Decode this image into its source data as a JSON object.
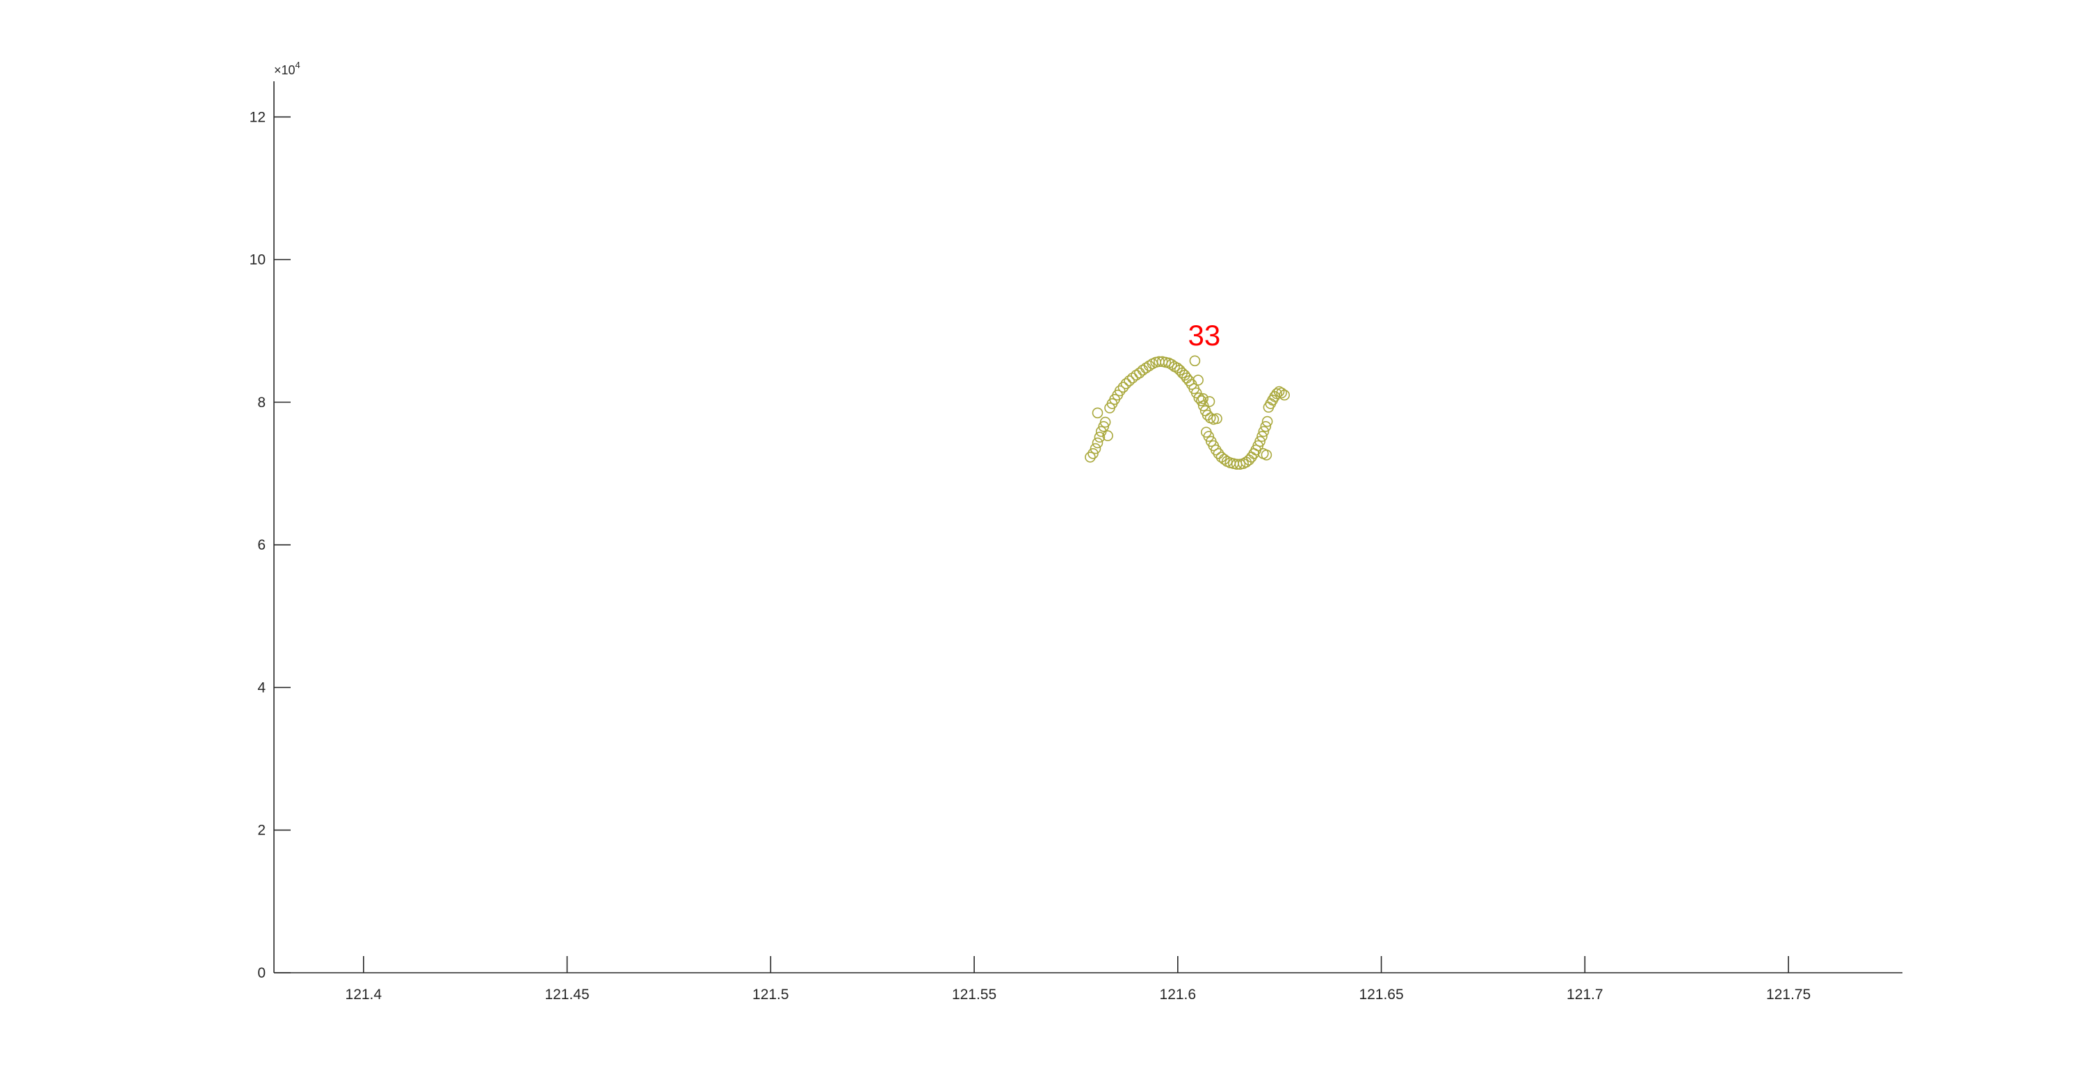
{
  "chart_data": {
    "type": "scatter",
    "title": "",
    "xlabel": "",
    "ylabel": "",
    "xlim": [
      121.378,
      121.778
    ],
    "ylim": [
      0,
      125000
    ],
    "x_ticks": [
      121.4,
      121.45,
      121.5,
      121.55,
      121.6,
      121.65,
      121.7,
      121.75
    ],
    "x_tick_labels": [
      "121.4",
      "121.45",
      "121.5",
      "121.55",
      "121.6",
      "121.65",
      "121.7",
      "121.75"
    ],
    "y_ticks": [
      0,
      20000,
      40000,
      60000,
      80000,
      100000,
      120000
    ],
    "y_tick_labels": [
      "0",
      "2",
      "4",
      "6",
      "8",
      "10",
      "12"
    ],
    "y_exponent_label": "×10",
    "y_exponent_power": "4",
    "grid": false,
    "marker_color": "#a9a83c",
    "annotation_color": "#ff0000",
    "annotations": [
      {
        "text": "33",
        "x": 121.6065,
        "y": 88000
      }
    ],
    "series": [
      {
        "marker": "circle",
        "points": [
          [
            121.5785,
            72300
          ],
          [
            121.5792,
            72800
          ],
          [
            121.5798,
            73500
          ],
          [
            121.5803,
            74300
          ],
          [
            121.5808,
            75100
          ],
          [
            121.5812,
            75900
          ],
          [
            121.5818,
            76600
          ],
          [
            121.5822,
            77200
          ],
          [
            121.5803,
            78500
          ],
          [
            121.5828,
            75300
          ],
          [
            121.5833,
            79200
          ],
          [
            121.5839,
            79800
          ],
          [
            121.5845,
            80400
          ],
          [
            121.5852,
            81000
          ],
          [
            121.5858,
            81600
          ],
          [
            121.5866,
            82100
          ],
          [
            121.5873,
            82600
          ],
          [
            121.5881,
            83000
          ],
          [
            121.5889,
            83400
          ],
          [
            121.5898,
            83800
          ],
          [
            121.5906,
            84100
          ],
          [
            121.5914,
            84500
          ],
          [
            121.5922,
            84800
          ],
          [
            121.593,
            85100
          ],
          [
            121.5938,
            85400
          ],
          [
            121.5946,
            85600
          ],
          [
            121.5954,
            85700
          ],
          [
            121.5962,
            85700
          ],
          [
            121.597,
            85600
          ],
          [
            121.5978,
            85500
          ],
          [
            121.5985,
            85300
          ],
          [
            121.5992,
            85000
          ],
          [
            121.5999,
            84800
          ],
          [
            121.6005,
            84500
          ],
          [
            121.6011,
            84100
          ],
          [
            121.6017,
            83800
          ],
          [
            121.6022,
            83400
          ],
          [
            121.6028,
            83000
          ],
          [
            121.6034,
            82500
          ],
          [
            121.604,
            81900
          ],
          [
            121.6046,
            81300
          ],
          [
            121.6052,
            80600
          ],
          [
            121.6042,
            85800
          ],
          [
            121.605,
            83100
          ],
          [
            121.6058,
            80200
          ],
          [
            121.6063,
            79500
          ],
          [
            121.6068,
            78800
          ],
          [
            121.6073,
            78200
          ],
          [
            121.608,
            77800
          ],
          [
            121.6088,
            77600
          ],
          [
            121.6096,
            77700
          ],
          [
            121.6062,
            80500
          ],
          [
            121.6078,
            80100
          ],
          [
            121.607,
            75800
          ],
          [
            121.6076,
            75200
          ],
          [
            121.6082,
            74500
          ],
          [
            121.6088,
            73900
          ],
          [
            121.6094,
            73300
          ],
          [
            121.61,
            72800
          ],
          [
            121.6107,
            72300
          ],
          [
            121.6114,
            72000
          ],
          [
            121.6121,
            71700
          ],
          [
            121.6129,
            71500
          ],
          [
            121.6137,
            71400
          ],
          [
            121.6145,
            71300
          ],
          [
            121.6153,
            71300
          ],
          [
            121.6161,
            71400
          ],
          [
            121.6168,
            71600
          ],
          [
            121.6175,
            71900
          ],
          [
            121.6181,
            72300
          ],
          [
            121.6187,
            72800
          ],
          [
            121.6192,
            73300
          ],
          [
            121.6197,
            73900
          ],
          [
            121.6202,
            74500
          ],
          [
            121.6207,
            75200
          ],
          [
            121.6211,
            75900
          ],
          [
            121.6216,
            76600
          ],
          [
            121.622,
            77300
          ],
          [
            121.621,
            72800
          ],
          [
            121.6218,
            72600
          ],
          [
            121.6223,
            79300
          ],
          [
            121.6228,
            79800
          ],
          [
            121.6233,
            80300
          ],
          [
            121.6238,
            80800
          ],
          [
            121.6243,
            81200
          ],
          [
            121.6249,
            81500
          ],
          [
            121.6255,
            81300
          ],
          [
            121.6262,
            81000
          ]
        ]
      }
    ]
  }
}
